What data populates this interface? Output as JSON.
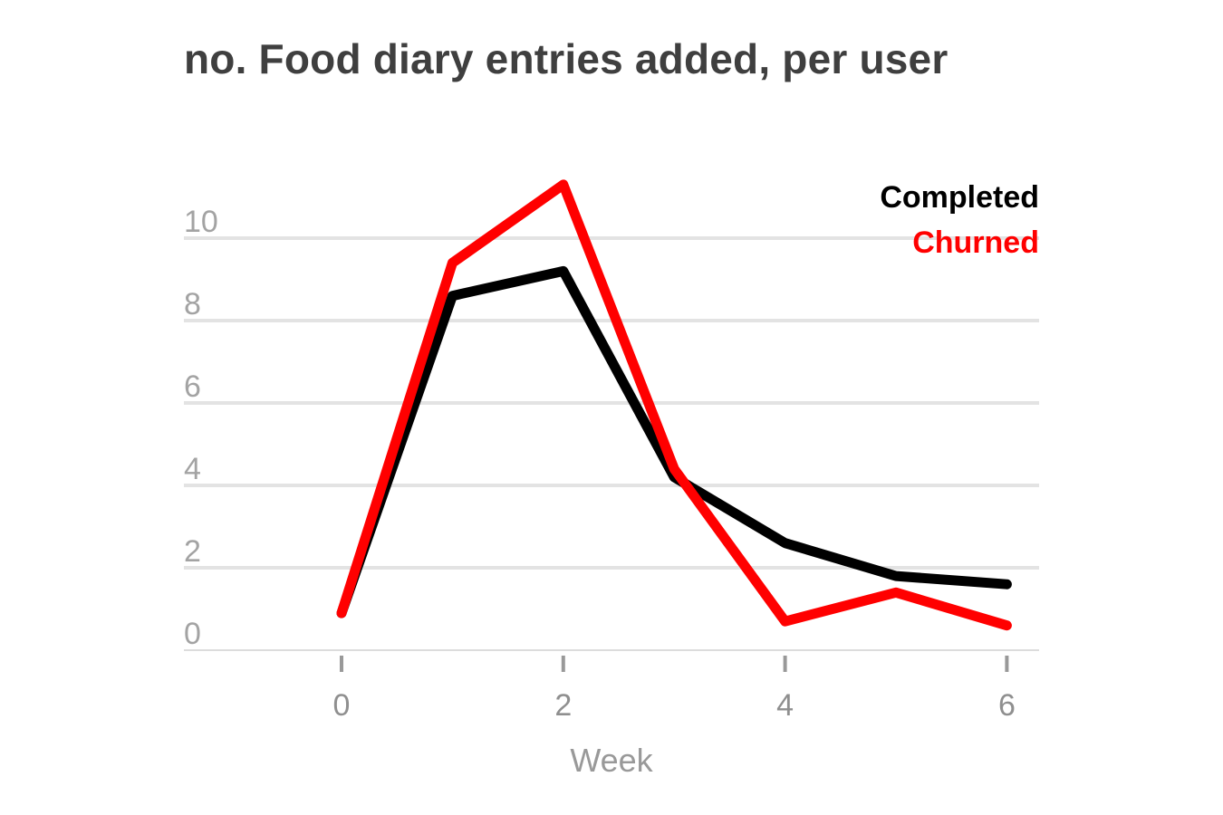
{
  "chart_data": {
    "type": "line",
    "title": "no. Food diary entries added, per user",
    "xlabel": "Week",
    "ylabel": "",
    "x": [
      0,
      1,
      2,
      3,
      4,
      5,
      6
    ],
    "xlim": [
      -1.4,
      6.3
    ],
    "ylim": [
      0,
      10.5
    ],
    "x_ticks": [
      0,
      2,
      4,
      6
    ],
    "y_ticks": [
      0,
      2,
      4,
      6,
      8,
      10
    ],
    "grid": true,
    "legend_position": "top-right",
    "series": [
      {
        "name": "Completed",
        "color": "#000000",
        "values": [
          0.9,
          8.6,
          9.2,
          4.2,
          2.6,
          1.8,
          1.6
        ]
      },
      {
        "name": "Churned",
        "color": "#ff0000",
        "values": [
          0.9,
          9.4,
          11.3,
          4.4,
          0.7,
          1.4,
          0.6
        ]
      }
    ]
  }
}
